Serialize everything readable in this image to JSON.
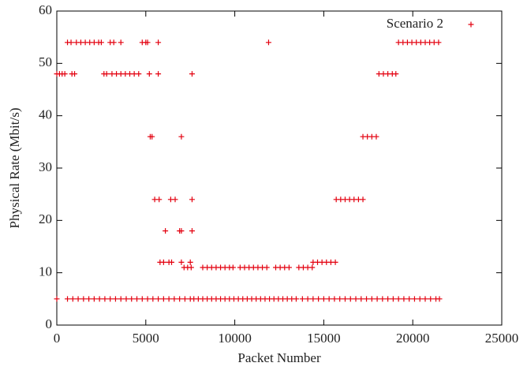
{
  "chart_data": {
    "type": "scatter",
    "xlabel": "Packet Number",
    "ylabel": "Physical Rate (Mbit/s)",
    "xlim": [
      0,
      25000
    ],
    "ylim": [
      0,
      60
    ],
    "xticks": [
      0,
      5000,
      10000,
      15000,
      20000,
      25000
    ],
    "yticks": [
      0,
      10,
      20,
      30,
      40,
      50,
      60
    ],
    "legend": "upper right",
    "series": [
      {
        "name": "Scenario 2",
        "color": "#e3000f",
        "x": [
          0,
          150,
          300,
          450,
          850,
          1000,
          2650,
          2800,
          3100,
          3350,
          3600,
          3850,
          4100,
          4350,
          4600,
          5200,
          5700,
          7600,
          18100,
          18350,
          18600,
          18850,
          19050,
          600,
          800,
          1100,
          1350,
          1600,
          1850,
          2100,
          2350,
          2500,
          3000,
          3200,
          3600,
          4800,
          5000,
          5100,
          5700,
          11900,
          19200,
          19450,
          19700,
          19950,
          20200,
          20450,
          20700,
          20950,
          21200,
          21450,
          5250,
          5350,
          7000,
          17200,
          17450,
          17700,
          17950,
          5500,
          5750,
          6400,
          6650,
          7600,
          15700,
          15950,
          16200,
          16450,
          16700,
          16950,
          17200,
          6100,
          6900,
          7000,
          7600,
          5800,
          6000,
          6300,
          6450,
          7000,
          7500,
          14400,
          14650,
          14900,
          15150,
          15400,
          15650,
          7150,
          7350,
          7550,
          8200,
          8450,
          8700,
          8950,
          9200,
          9450,
          9700,
          9900,
          10300,
          10550,
          10800,
          11050,
          11300,
          11550,
          11800,
          12300,
          12550,
          12800,
          13050,
          13600,
          13850,
          14100,
          14350,
          0,
          600,
          900,
          1200,
          1500,
          1800,
          2100,
          2400,
          2700,
          3000,
          3300,
          3600,
          3900,
          4200,
          4500,
          4800,
          5100,
          5400,
          5700,
          6000,
          6300,
          6600,
          6900,
          7200,
          7500,
          7700,
          7950,
          8200,
          8450,
          8700,
          8950,
          9200,
          9450,
          9700,
          9950,
          10200,
          10450,
          10700,
          10950,
          11200,
          11450,
          11700,
          11950,
          12200,
          12450,
          12700,
          12950,
          13200,
          13450,
          13800,
          14100,
          14400,
          14700,
          15000,
          15300,
          15600,
          15900,
          16200,
          16500,
          16800,
          17100,
          17400,
          17700,
          18000,
          18300,
          18600,
          18900,
          19200,
          19500,
          19800,
          20100,
          20400,
          20700,
          21000,
          21300,
          21500
        ],
        "values": [
          48,
          48,
          48,
          48,
          48,
          48,
          48,
          48,
          48,
          48,
          48,
          48,
          48,
          48,
          48,
          48,
          48,
          48,
          48,
          48,
          48,
          48,
          48,
          54,
          54,
          54,
          54,
          54,
          54,
          54,
          54,
          54,
          54,
          54,
          54,
          54,
          54,
          54,
          54,
          54,
          54,
          54,
          54,
          54,
          54,
          54,
          54,
          54,
          54,
          54,
          36,
          36,
          36,
          36,
          36,
          36,
          36,
          24,
          24,
          24,
          24,
          24,
          24,
          24,
          24,
          24,
          24,
          24,
          24,
          18,
          18,
          18,
          18,
          12,
          12,
          12,
          12,
          12,
          12,
          12,
          12,
          12,
          12,
          12,
          12,
          11,
          11,
          11,
          11,
          11,
          11,
          11,
          11,
          11,
          11,
          11,
          11,
          11,
          11,
          11,
          11,
          11,
          11,
          11,
          11,
          11,
          11,
          11,
          11,
          11,
          11,
          5,
          5,
          5,
          5,
          5,
          5,
          5,
          5,
          5,
          5,
          5,
          5,
          5,
          5,
          5,
          5,
          5,
          5,
          5,
          5,
          5,
          5,
          5,
          5,
          5,
          5,
          5,
          5,
          5,
          5,
          5,
          5,
          5,
          5,
          5,
          5,
          5,
          5,
          5,
          5,
          5,
          5,
          5,
          5,
          5,
          5,
          5,
          5,
          5,
          5,
          5,
          5,
          5,
          5,
          5,
          5,
          5,
          5,
          5,
          5,
          5,
          5,
          5,
          5,
          5,
          5,
          5,
          5,
          5,
          5,
          5,
          5,
          5,
          5,
          5,
          5
        ]
      }
    ]
  }
}
